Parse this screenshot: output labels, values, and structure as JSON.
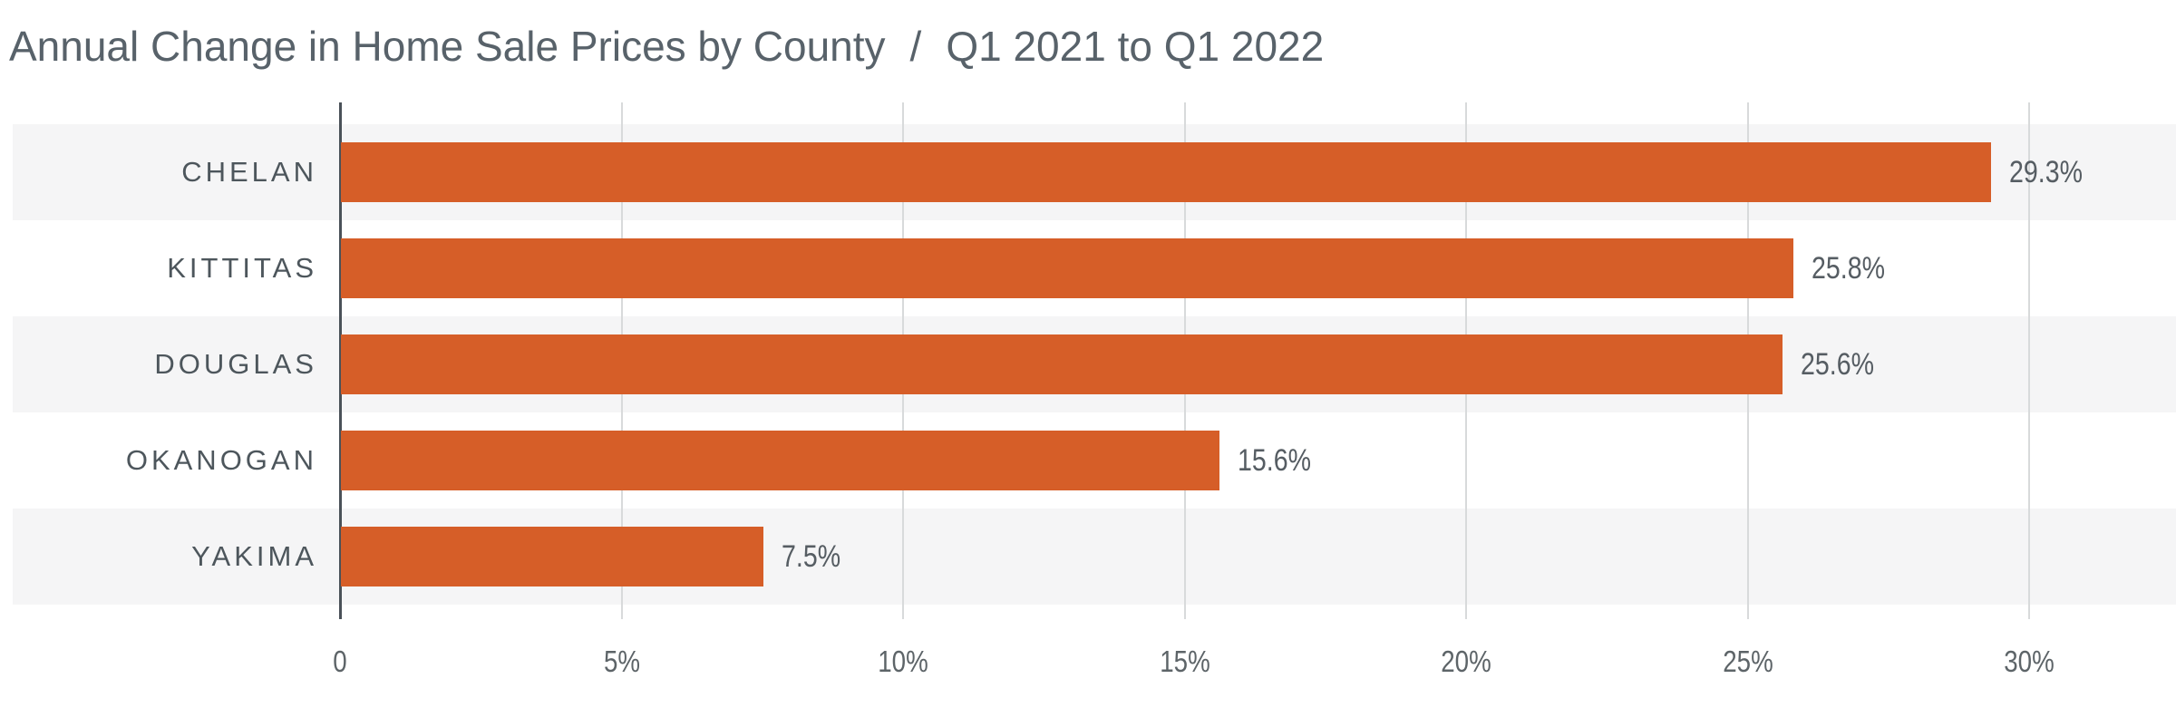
{
  "header": {
    "title": "Annual Change in Home Sale Prices by County",
    "separator": "/",
    "subtitle": "Q1 2021 to Q1 2022"
  },
  "chart_data": {
    "type": "bar",
    "orientation": "horizontal",
    "title": "Annual Change in Home Sale Prices by County / Q1 2021 to Q1 2022",
    "categories": [
      "CHELAN",
      "KITTITAS",
      "DOUGLAS",
      "OKANOGAN",
      "YAKIMA"
    ],
    "values": [
      29.3,
      25.8,
      25.6,
      15.6,
      7.5
    ],
    "value_labels": [
      "29.3%",
      "25.8%",
      "25.6%",
      "15.6%",
      "7.5%"
    ],
    "xlabel": "",
    "ylabel": "",
    "xlim": [
      0,
      32.6
    ],
    "x_ticks": [
      {
        "label": "0",
        "value": 0
      },
      {
        "label": "5%",
        "value": 5
      },
      {
        "label": "10%",
        "value": 10
      },
      {
        "label": "15%",
        "value": 15
      },
      {
        "label": "20%",
        "value": 20
      },
      {
        "label": "25%",
        "value": 25
      },
      {
        "label": "30%",
        "value": 30
      }
    ],
    "grid": "vertical-only",
    "legend": "none",
    "row_striping": "alternating, stripes on rows 1/3/5",
    "colors": {
      "bar": "#d65e28",
      "row_stripe": "#f5f5f6",
      "axis_line": "#4a5158",
      "gridline": "#d8dadb",
      "category_label": "#4d565c",
      "value_label": "#565d63",
      "tick_label": "#5d6468",
      "title": "#58626a"
    }
  }
}
